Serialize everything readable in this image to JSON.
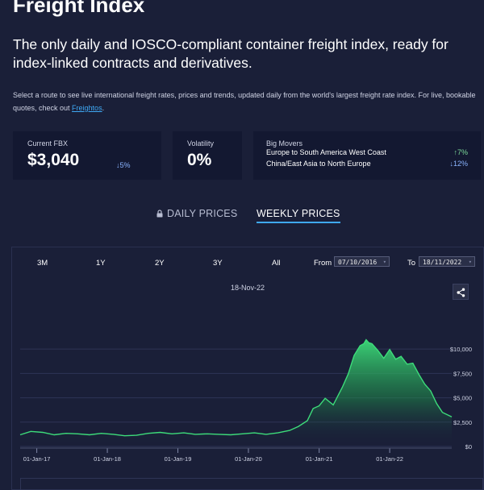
{
  "header": {
    "title": "Freight Index",
    "subtitle": "The only daily and IOSCO-compliant container freight index, ready for index-linked contracts and derivatives.",
    "desc_pre": "Select a route to see live international freight rates, prices and trends, updated daily from the world's largest freight rate index. For live, bookable quotes, check out ",
    "desc_link": "Freightos",
    "desc_post": "."
  },
  "cards": {
    "fbx": {
      "label": "Current FBX",
      "value": "$3,040",
      "change": "5%",
      "direction": "down"
    },
    "volatility": {
      "label": "Volatility",
      "value": "0%"
    },
    "big_movers": {
      "label": "Big Movers",
      "rows": [
        {
          "route": "Europe to South America West Coast",
          "change": "7%",
          "direction": "up",
          "color": "#7ddc9a"
        },
        {
          "route": "China/East Asia to North Europe",
          "change": "12%",
          "direction": "down",
          "color": "#8ab4ff"
        }
      ]
    }
  },
  "tabs": {
    "daily": "DAILY PRICES",
    "weekly": "WEEKLY PRICES",
    "active": "weekly"
  },
  "chart_controls": {
    "ranges": [
      "3M",
      "1Y",
      "2Y",
      "3Y",
      "All"
    ],
    "from_label": "From",
    "from_value": "07/10/2016",
    "to_label": "To",
    "to_value": "18/11/2022",
    "hover_date": "18-Nov-22"
  },
  "colors": {
    "background": "#1a1f38",
    "card": "#131831",
    "accent": "#3fa9f5",
    "line": "#3ddc7a"
  },
  "chart_data": {
    "type": "area",
    "title": "",
    "xlabel": "",
    "ylabel": "",
    "x_ticks": [
      "01-Jan-17",
      "01-Jan-18",
      "01-Jan-19",
      "01-Jan-20",
      "01-Jan-21",
      "01-Jan-22"
    ],
    "y_ticks": [
      "$0",
      "$2,500",
      "$5,000",
      "$7,500",
      "$10,000"
    ],
    "ylim": [
      0,
      11500
    ],
    "xlim": [
      "2016-10-07",
      "2022-11-18"
    ],
    "grid": true,
    "series": [
      {
        "x": [
          "2016-10-07",
          "2016-12-01",
          "2017-02-01",
          "2017-04-01",
          "2017-06-01",
          "2017-08-01",
          "2017-10-01",
          "2017-12-01",
          "2018-02-01",
          "2018-04-01",
          "2018-06-01",
          "2018-08-01",
          "2018-10-01",
          "2018-12-01",
          "2019-02-01",
          "2019-04-01",
          "2019-06-01",
          "2019-08-01",
          "2019-10-01",
          "2019-12-01",
          "2020-02-01",
          "2020-04-01",
          "2020-06-01",
          "2020-08-01",
          "2020-09-15",
          "2020-11-01",
          "2020-12-01",
          "2021-01-01",
          "2021-02-01",
          "2021-03-15",
          "2021-05-01",
          "2021-06-01",
          "2021-07-01",
          "2021-08-01",
          "2021-08-20",
          "2021-09-01",
          "2021-09-15",
          "2021-10-01",
          "2021-11-01",
          "2021-12-01",
          "2022-01-01",
          "2022-02-01",
          "2022-03-01",
          "2022-04-01",
          "2022-05-01",
          "2022-06-01",
          "2022-07-01",
          "2022-08-01",
          "2022-09-01",
          "2022-10-01",
          "2022-11-18"
        ],
        "y": [
          1200,
          1550,
          1450,
          1200,
          1350,
          1300,
          1200,
          1350,
          1250,
          1100,
          1150,
          1350,
          1450,
          1300,
          1400,
          1250,
          1300,
          1250,
          1200,
          1300,
          1400,
          1250,
          1400,
          1650,
          2050,
          2650,
          3900,
          4300,
          4800,
          4400,
          5900,
          7700,
          9100,
          10600,
          10300,
          11200,
          10400,
          10800,
          9600,
          9300,
          9700,
          9200,
          9000,
          8700,
          8300,
          7400,
          6400,
          5700,
          4400,
          3500,
          3040
        ]
      }
    ]
  }
}
